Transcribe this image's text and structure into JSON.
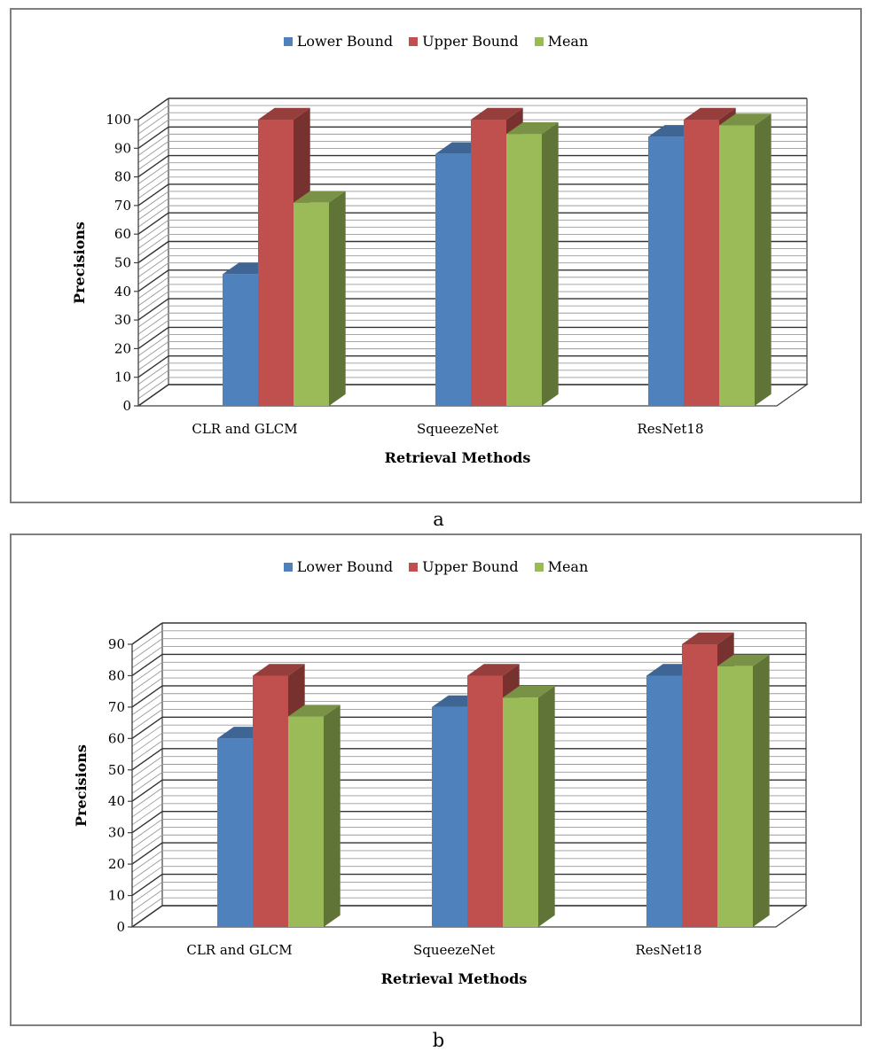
{
  "chart_data": [
    {
      "type": "bar",
      "title": "",
      "caption": "a",
      "xlabel": "Retrieval Methods",
      "ylabel": "Precisions",
      "categories": [
        "CLR and GLCM",
        "SqueezeNet",
        "ResNet18"
      ],
      "series": [
        {
          "name": "Lower Bound",
          "values": [
            46,
            88,
            94
          ],
          "color": "#4f81bd"
        },
        {
          "name": "Upper Bound",
          "values": [
            100,
            100,
            100
          ],
          "color": "#c0504d"
        },
        {
          "name": "Mean",
          "values": [
            71,
            95,
            98
          ],
          "color": "#9bbb59"
        }
      ],
      "ylim": [
        0,
        100
      ],
      "yticks": [
        0,
        10,
        20,
        30,
        40,
        50,
        60,
        70,
        80,
        90,
        100
      ],
      "grid": true,
      "legend": "top"
    },
    {
      "type": "bar",
      "title": "",
      "caption": "b",
      "xlabel": "Retrieval Methods",
      "ylabel": "Precisions",
      "categories": [
        "CLR and GLCM",
        "SqueezeNet",
        "ResNet18"
      ],
      "series": [
        {
          "name": "Lower Bound",
          "values": [
            60,
            70,
            80
          ],
          "color": "#4f81bd"
        },
        {
          "name": "Upper Bound",
          "values": [
            80,
            80,
            90
          ],
          "color": "#c0504d"
        },
        {
          "name": "Mean",
          "values": [
            67,
            73,
            83
          ],
          "color": "#9bbb59"
        }
      ],
      "ylim": [
        0,
        90
      ],
      "yticks": [
        0,
        10,
        20,
        30,
        40,
        50,
        60,
        70,
        80,
        90
      ],
      "grid": true,
      "legend": "top"
    }
  ]
}
